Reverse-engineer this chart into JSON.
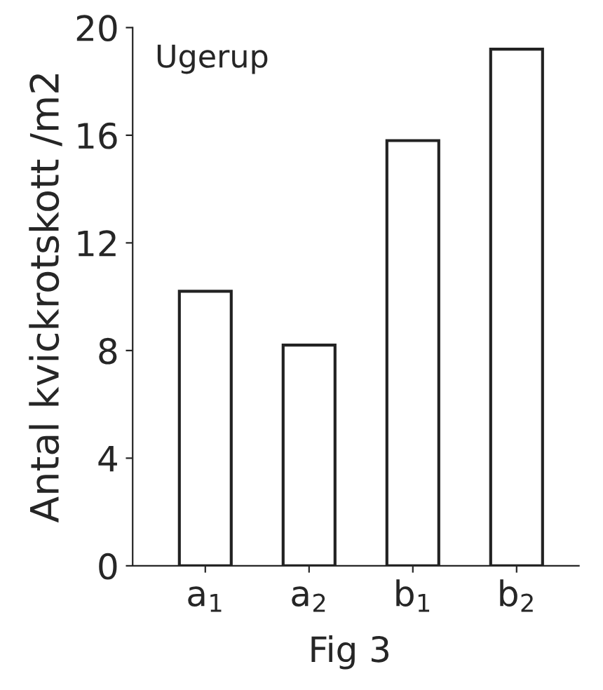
{
  "chart_data": {
    "type": "bar",
    "categories": [
      "a$_{1}$",
      "a$_{2}$",
      "b$_{1}$",
      "b$_{2}$"
    ],
    "values": [
      10.2,
      8.2,
      15.8,
      19.2
    ],
    "color": "#ffffff",
    "ylabel": "Antal kvickrotskott /m2",
    "ylim": [
      0,
      20
    ],
    "yticks": [
      0,
      4,
      8,
      12,
      16,
      20
    ],
    "annotations": [
      "Ugerup",
      "Fig 3"
    ],
    "grid": false,
    "legend": false
  }
}
